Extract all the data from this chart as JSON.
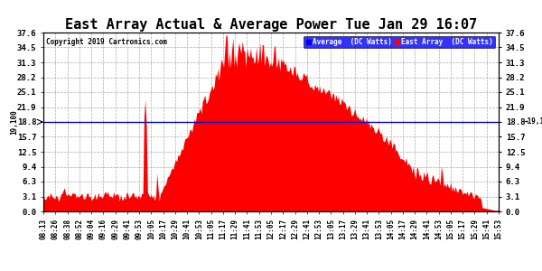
{
  "title": "East Array Actual & Average Power Tue Jan 29 16:07",
  "copyright": "Copyright 2019 Cartronics.com",
  "legend_avg": "Average  (DC Watts)",
  "legend_east": "East Array  (DC Watts)",
  "ymin": 0.0,
  "ymax": 37.6,
  "yticks": [
    0.0,
    3.1,
    6.3,
    9.4,
    12.5,
    15.7,
    18.8,
    21.9,
    25.1,
    28.2,
    31.3,
    34.5,
    37.6
  ],
  "yline_value": 18.8,
  "yline_label": "19,100",
  "background_color": "#ffffff",
  "grid_color": "#aaaaaa",
  "area_color": "#ff0000",
  "avg_line_color": "#0000cc",
  "title_fontsize": 11,
  "x_tick_fontsize": 5.5,
  "y_tick_fontsize": 6.5,
  "time_labels": [
    "08:13",
    "08:26",
    "08:38",
    "08:52",
    "09:04",
    "09:16",
    "09:29",
    "09:41",
    "09:53",
    "10:05",
    "10:17",
    "10:29",
    "10:41",
    "10:53",
    "11:05",
    "11:17",
    "11:29",
    "11:41",
    "11:53",
    "12:05",
    "12:17",
    "12:29",
    "12:41",
    "12:53",
    "13:05",
    "13:17",
    "13:29",
    "13:41",
    "13:53",
    "14:05",
    "14:17",
    "14:29",
    "14:41",
    "14:53",
    "15:05",
    "15:17",
    "15:29",
    "15:41",
    "15:53"
  ]
}
